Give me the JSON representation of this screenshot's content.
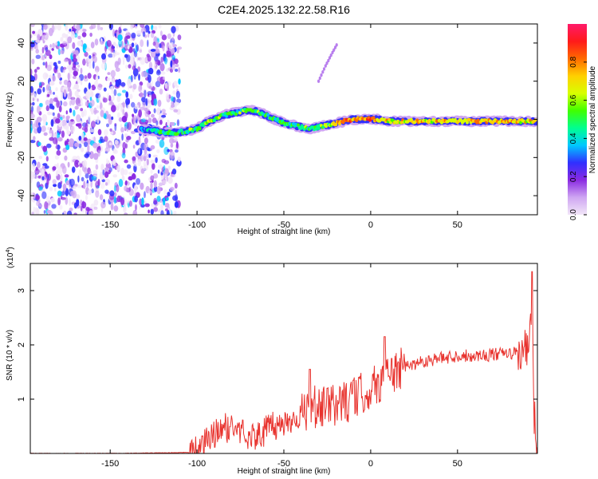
{
  "figure_title": "C2E4.2025.132.22.58.R16",
  "chart_data": [
    {
      "type": "heatmap",
      "title": "C2E4.2025.132.22.58.R16",
      "xlabel": "Height of straight line (km)",
      "ylabel": "Frequency (Hz)",
      "xlim": [
        -196,
        96
      ],
      "ylim": [
        -50,
        50
      ],
      "xticks": [
        -150,
        -100,
        -50,
        0,
        50
      ],
      "yticks": [
        -40,
        -20,
        0,
        20,
        40
      ],
      "grid": false,
      "colorbar": {
        "label": "Normalized spectral amplitude",
        "range": [
          0.0,
          1.0
        ],
        "ticks": [
          0.0,
          0.2,
          0.4,
          0.6,
          0.8
        ],
        "colors": [
          "#f2e6f8",
          "#cfa6f2",
          "#8b2be2",
          "#3030ff",
          "#00c8ff",
          "#00ff90",
          "#40ff00",
          "#d8ff00",
          "#ffd000",
          "#ff6a00",
          "#ff1a1a",
          "#ff1a6a"
        ]
      },
      "noise_region_x": [
        -196,
        -110
      ],
      "ridge": {
        "x": [
          -132,
          -125,
          -118,
          -112,
          -105,
          -100,
          -95,
          -90,
          -85,
          -80,
          -75,
          -70,
          -65,
          -60,
          -55,
          -50,
          -45,
          -40,
          -35,
          -30,
          -25,
          -20,
          -15,
          -10,
          -5,
          0,
          5,
          10,
          20,
          30,
          40,
          50,
          60,
          70,
          80,
          90,
          95
        ],
        "y": [
          -5,
          -6,
          -7,
          -7,
          -6,
          -5,
          -2,
          0,
          2,
          3,
          4,
          5,
          4,
          2,
          0,
          -2,
          -3,
          -4,
          -5,
          -4,
          -3,
          -2,
          -1,
          0,
          0,
          0,
          0,
          -1,
          -1,
          -1,
          -1,
          -1,
          -1,
          -1,
          -1,
          -1,
          -1
        ],
        "amp": [
          0.35,
          0.4,
          0.45,
          0.45,
          0.5,
          0.5,
          0.5,
          0.55,
          0.5,
          0.5,
          0.5,
          0.55,
          0.5,
          0.45,
          0.45,
          0.45,
          0.45,
          0.45,
          0.5,
          0.5,
          0.55,
          0.75,
          0.8,
          0.8,
          0.75,
          0.85,
          0.7,
          0.7,
          0.65,
          0.7,
          0.7,
          0.7,
          0.7,
          0.7,
          0.7,
          0.7,
          0.65
        ]
      },
      "faint_trace": {
        "x": [
          -30,
          -26,
          -22,
          -19
        ],
        "y": [
          20,
          28,
          35,
          40
        ]
      }
    },
    {
      "type": "line",
      "title": "",
      "xlabel": "Height of straight line (km)",
      "ylabel": "SNR (10 * v/v)",
      "y_multiplier_label": "(x10",
      "y_multiplier_exponent": "4",
      "y_multiplier_close": ")",
      "xlim": [
        -196,
        96
      ],
      "ylim": [
        0,
        3.5
      ],
      "xticks": [
        -150,
        -100,
        -50,
        0,
        50
      ],
      "yticks": [
        1,
        2,
        3
      ],
      "grid": false,
      "series": [
        {
          "color": "#e8332e",
          "x": [
            -196,
            -150,
            -120,
            -105,
            -100,
            -95,
            -90,
            -85,
            -80,
            -75,
            -70,
            -65,
            -60,
            -55,
            -50,
            -45,
            -40,
            -36,
            -34,
            -30,
            -25,
            -20,
            -15,
            -10,
            -5,
            0,
            5,
            8,
            10,
            15,
            20,
            25,
            30,
            40,
            50,
            60,
            70,
            80,
            85,
            90,
            92,
            93,
            94,
            95,
            96
          ],
          "y": [
            0.0,
            0.0,
            0.01,
            0.02,
            0.05,
            0.2,
            0.35,
            0.45,
            0.5,
            0.4,
            0.35,
            0.3,
            0.45,
            0.5,
            0.55,
            0.65,
            0.7,
            0.85,
            0.9,
            0.8,
            0.85,
            0.9,
            0.95,
            1.0,
            1.1,
            1.2,
            1.3,
            1.45,
            1.45,
            1.5,
            1.6,
            1.65,
            1.7,
            1.75,
            1.8,
            1.8,
            1.82,
            1.84,
            1.85,
            1.9,
            2.1,
            3.3,
            0.8,
            0.4,
            0.3
          ],
          "spikes": [
            {
              "x": -35,
              "y": 1.55
            },
            {
              "x": -25,
              "y": 1.2
            },
            {
              "x": -10,
              "y": 1.35
            },
            {
              "x": 8,
              "y": 2.15
            },
            {
              "x": 12,
              "y": 1.75
            },
            {
              "x": 93,
              "y": 3.35
            }
          ]
        }
      ]
    }
  ]
}
